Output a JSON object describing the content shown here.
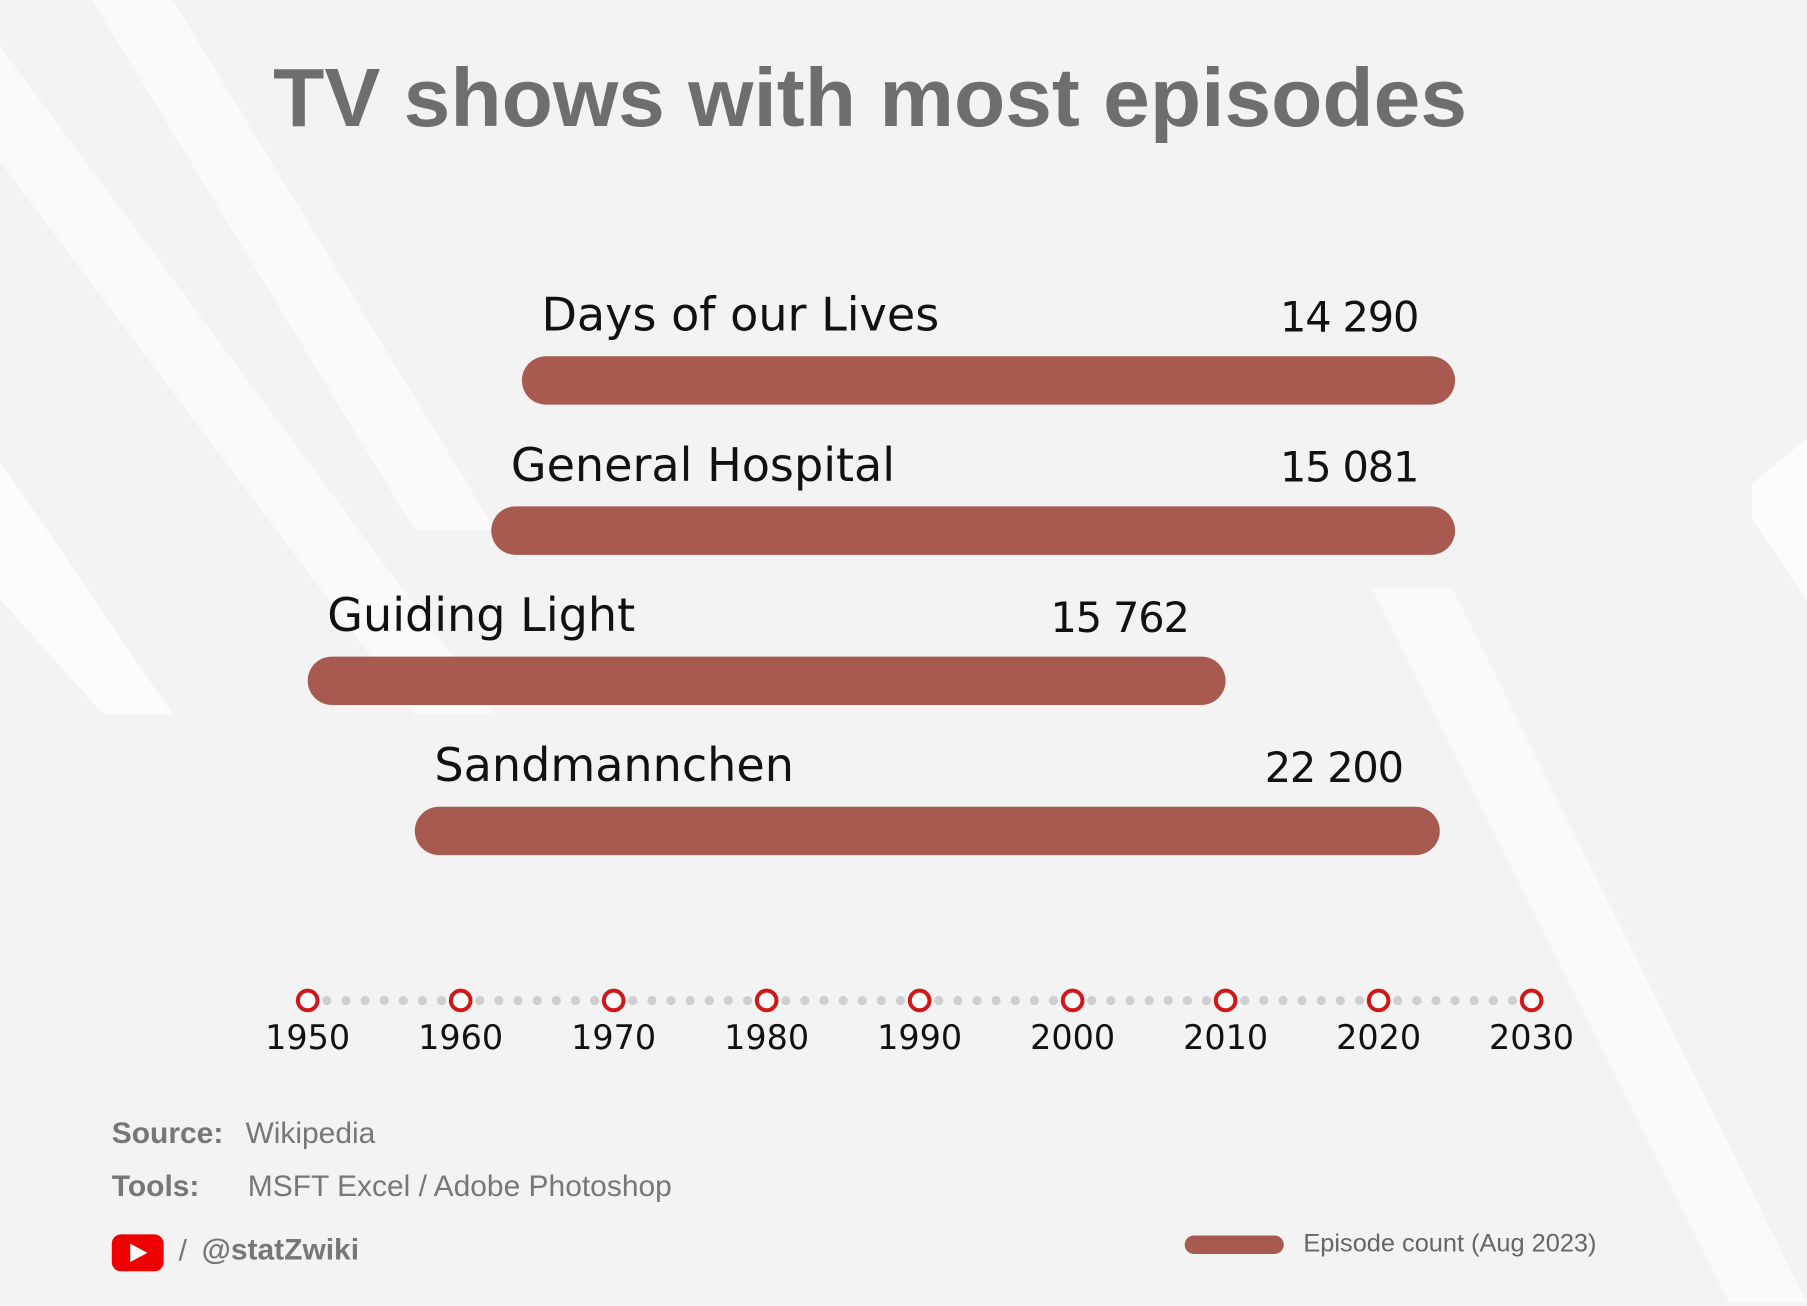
{
  "chart_data": {
    "type": "range-bar",
    "title": "TV shows with most episodes",
    "categories": [
      "Days of our Lives",
      "General Hospital",
      "Guiding Light",
      "Sandmannchen"
    ],
    "series": [
      {
        "name": "Episode count (Aug 2023)",
        "color": "#a85a50",
        "start": [
          1964,
          1962,
          1950,
          1957
        ],
        "end": [
          2025,
          2025,
          2010,
          2024
        ],
        "values": [
          14290,
          15081,
          15762,
          22200
        ],
        "value_labels": [
          "14 290",
          "15 081",
          "15 762",
          "22 200"
        ]
      }
    ],
    "xlim": [
      1950,
      2030
    ],
    "xticks": [
      1950,
      1960,
      1970,
      1980,
      1990,
      2000,
      2010,
      2020,
      2030
    ],
    "tick_color": "#d01818"
  },
  "footer": {
    "source_label": "Source:",
    "source": "Wikipedia",
    "tools_label": "Tools:",
    "tools": "MSFT Excel / Adobe Photoshop",
    "separator": "/",
    "handle": "@statZwiki"
  }
}
